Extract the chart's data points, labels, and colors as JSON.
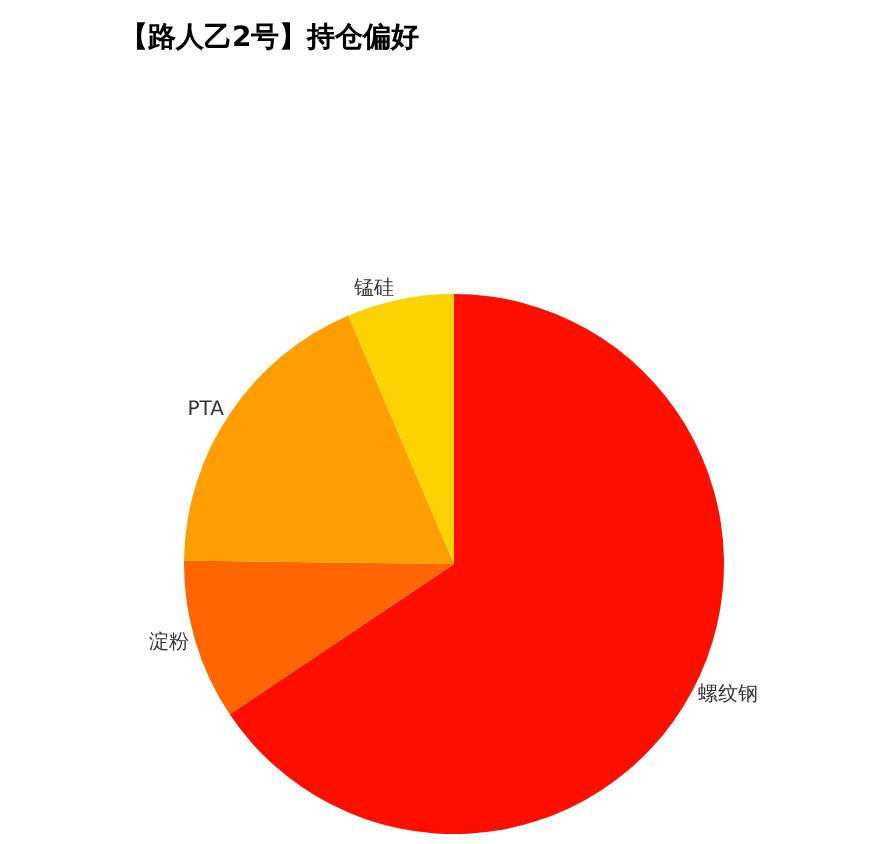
{
  "chart_data": {
    "type": "pie",
    "title": "【路人乙2号】持仓偏好",
    "categories": [
      "螺纹钢",
      "淀粉",
      "PTA",
      "锰硅"
    ],
    "values": [
      65.6,
      9.6,
      18.4,
      6.4
    ],
    "colors": [
      "#ff0f00",
      "#ff6600",
      "#ff9e01",
      "#fcd202"
    ]
  }
}
